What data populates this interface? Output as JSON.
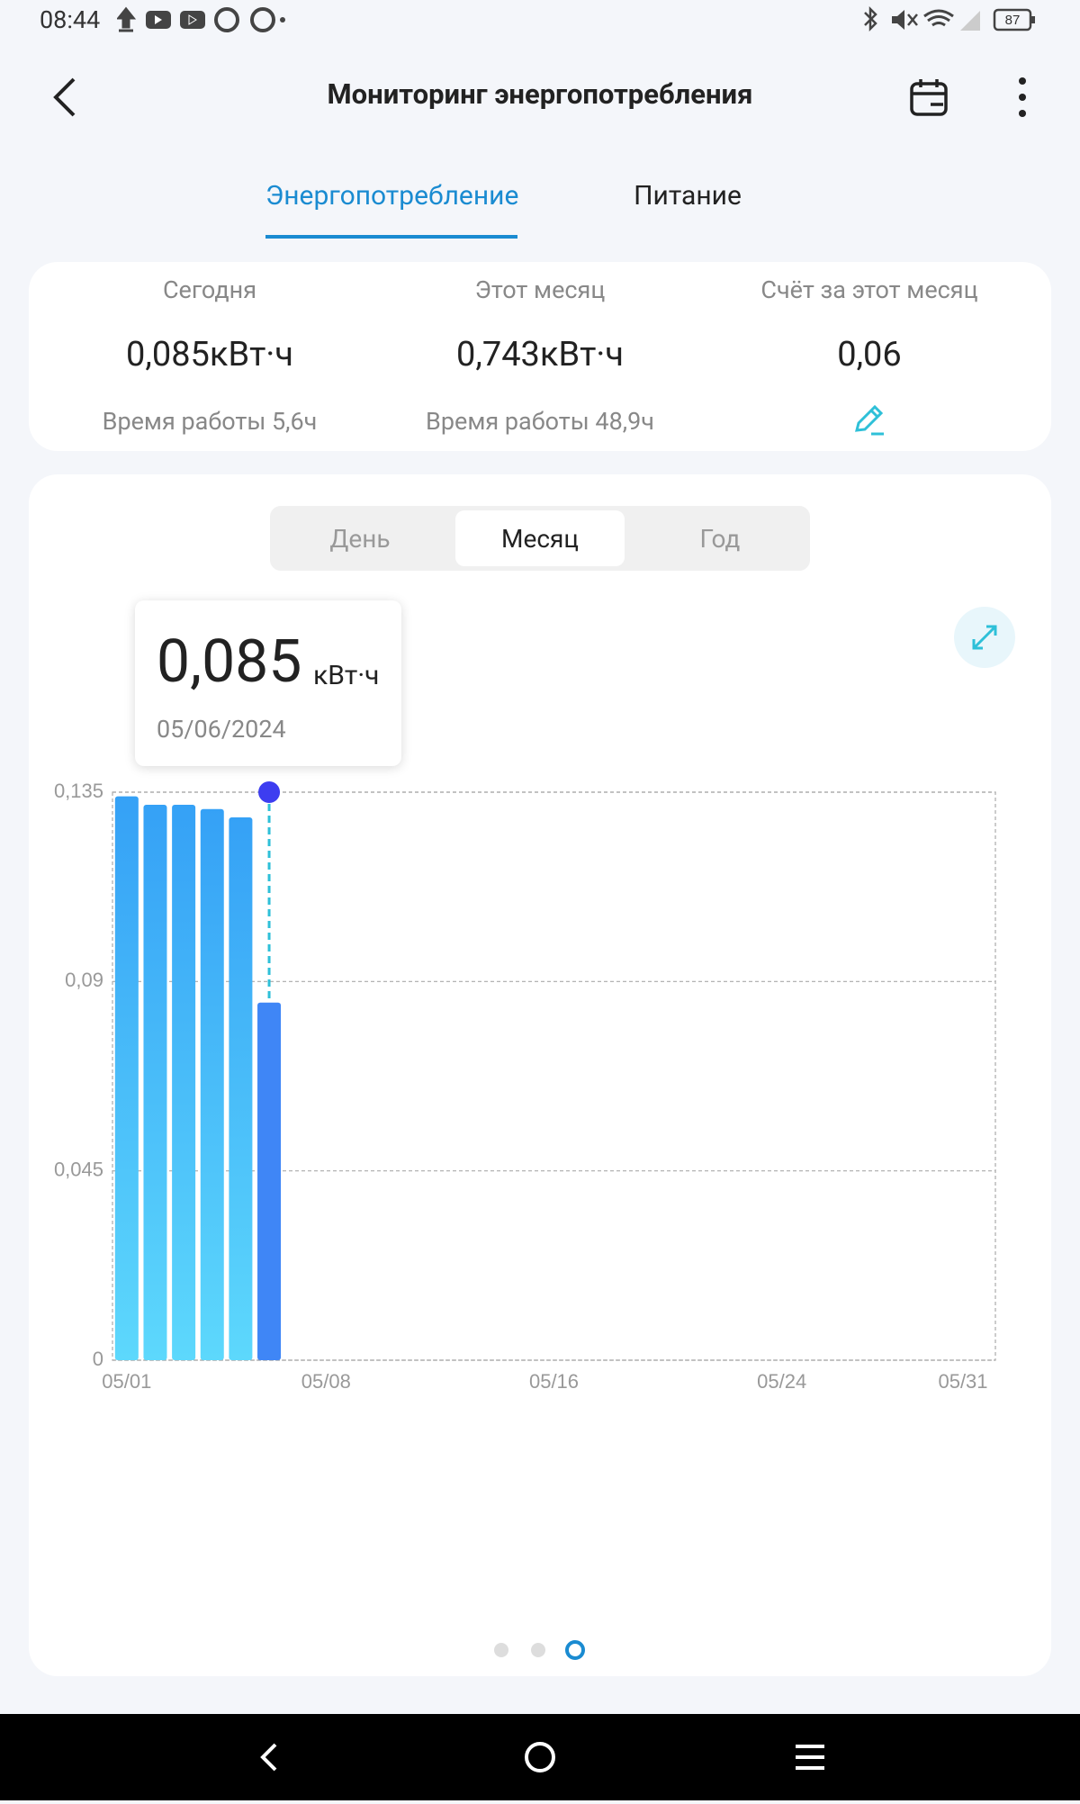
{
  "status_bar": {
    "time": "08:44",
    "battery": "87"
  },
  "header": {
    "title": "Мониторинг энергопотребления"
  },
  "tabs": [
    "Энергопотребление",
    "Питание"
  ],
  "summary": [
    {
      "label": "Сегодня",
      "value": "0,085кВт·ч",
      "note": "Время работы 5,6ч"
    },
    {
      "label": "Этот месяц",
      "value": "0,743кВт·ч",
      "note": "Время работы 48,9ч"
    },
    {
      "label": "Счёт за этот месяц",
      "value": "0,06"
    }
  ],
  "period_tabs": [
    "День",
    "Месяц",
    "Год"
  ],
  "tooltip": {
    "value": "0,085",
    "unit": "кВт·ч",
    "date": "05/06/2024"
  },
  "chart_data": {
    "type": "bar",
    "categories": [
      "05/01",
      null,
      null,
      null,
      null,
      null,
      null,
      "05/08",
      null,
      null,
      null,
      null,
      null,
      null,
      null,
      "05/16",
      null,
      null,
      null,
      null,
      null,
      null,
      null,
      "05/24",
      null,
      null,
      null,
      null,
      null,
      null,
      "05/31"
    ],
    "values": [
      0.134,
      0.132,
      0.132,
      0.131,
      0.129,
      0.085,
      null,
      null,
      null,
      null,
      null,
      null,
      null,
      null,
      null,
      null,
      null,
      null,
      null,
      null,
      null,
      null,
      null,
      null,
      null,
      null,
      null,
      null,
      null,
      null,
      null
    ],
    "colors": [
      "#35a1f6",
      "#5dd8fc"
    ],
    "highlight_color": "#3f86f6",
    "ylim": [
      0,
      0.135
    ],
    "yticks": [
      0,
      {
        "value": 0.045,
        "label": "0,045"
      },
      {
        "value": 0.09,
        "label": "0,09"
      },
      {
        "value": 0.135,
        "label": "0,135"
      }
    ],
    "grid": true
  }
}
